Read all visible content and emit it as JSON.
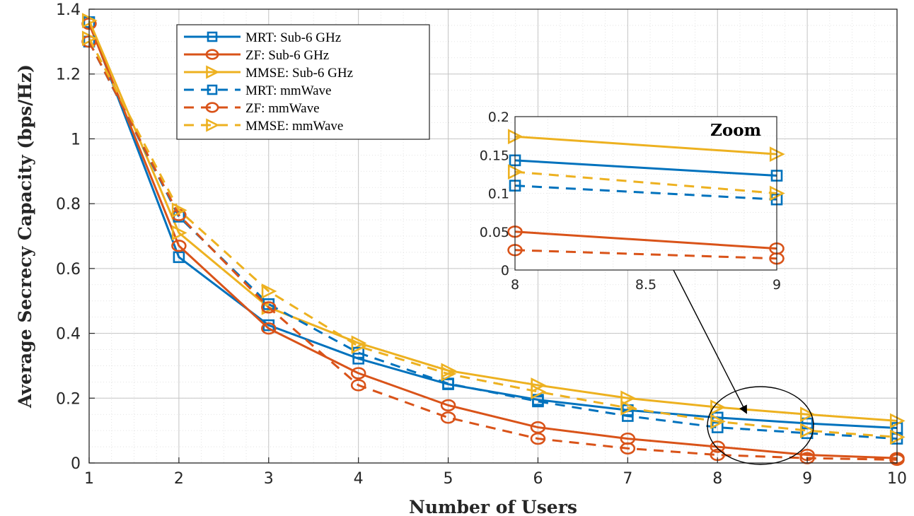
{
  "chart_data": {
    "type": "line",
    "xlabel": "Number of Users",
    "ylabel": "Average Secrecy Capacity (bps/Hz)",
    "x": [
      1,
      2,
      3,
      4,
      5,
      6,
      7,
      8,
      9,
      10
    ],
    "xlim": [
      1,
      10
    ],
    "ylim": [
      0,
      1.4
    ],
    "xticks": [
      "1",
      "2",
      "3",
      "4",
      "5",
      "6",
      "7",
      "8",
      "9",
      "10"
    ],
    "yticks": [
      "0",
      "0.2",
      "0.4",
      "0.6",
      "0.8",
      "1",
      "1.2",
      "1.4"
    ],
    "grid": true,
    "legend_position": "top-left",
    "series": [
      {
        "name": "MRT: Sub-6 GHz",
        "color": "#0072BD",
        "dash": "solid",
        "marker": "square",
        "values": [
          1.36,
          0.635,
          0.425,
          0.322,
          0.243,
          0.195,
          0.163,
          0.14,
          0.122,
          0.108
        ]
      },
      {
        "name": "ZF: Sub-6 GHz",
        "color": "#D95319",
        "dash": "solid",
        "marker": "circle",
        "values": [
          1.355,
          0.67,
          0.415,
          0.277,
          0.178,
          0.11,
          0.075,
          0.05,
          0.025,
          0.015
        ]
      },
      {
        "name": "MMSE: Sub-6 GHz",
        "color": "#EDB120",
        "dash": "solid",
        "marker": "triangle-right",
        "values": [
          1.365,
          0.71,
          0.48,
          0.37,
          0.285,
          0.24,
          0.2,
          0.172,
          0.15,
          0.13
        ]
      },
      {
        "name": "MRT: mmWave",
        "color": "#0072BD",
        "dash": "dashed",
        "marker": "square",
        "values": [
          1.3,
          0.76,
          0.49,
          0.34,
          0.245,
          0.19,
          0.145,
          0.11,
          0.092,
          0.075
        ]
      },
      {
        "name": "ZF: mmWave",
        "color": "#D95319",
        "dash": "dashed",
        "marker": "circle",
        "values": [
          1.3,
          0.765,
          0.48,
          0.24,
          0.14,
          0.075,
          0.045,
          0.025,
          0.015,
          0.01
        ]
      },
      {
        "name": "MMSE: mmWave",
        "color": "#EDB120",
        "dash": "dashed",
        "marker": "triangle-right",
        "values": [
          1.31,
          0.78,
          0.53,
          0.36,
          0.275,
          0.22,
          0.17,
          0.128,
          0.1,
          0.08
        ]
      }
    ],
    "inset": {
      "title": "Zoom",
      "xlim": [
        8,
        9
      ],
      "ylim": [
        0,
        0.2
      ],
      "xticks": [
        "8",
        "8.5",
        "9"
      ],
      "yticks": [
        "0",
        "0.05",
        "0.1",
        "0.15",
        "0.2"
      ],
      "x": [
        8,
        9
      ],
      "series": [
        {
          "name": "MRT: Sub-6 GHz",
          "values": [
            0.143,
            0.123
          ]
        },
        {
          "name": "ZF: Sub-6 GHz",
          "values": [
            0.05,
            0.028
          ]
        },
        {
          "name": "MMSE: Sub-6 GHz",
          "values": [
            0.174,
            0.151
          ]
        },
        {
          "name": "MRT: mmWave",
          "values": [
            0.11,
            0.092
          ]
        },
        {
          "name": "ZF: mmWave",
          "values": [
            0.026,
            0.015
          ]
        },
        {
          "name": "MMSE: mmWave",
          "values": [
            0.128,
            0.1
          ]
        }
      ]
    }
  }
}
